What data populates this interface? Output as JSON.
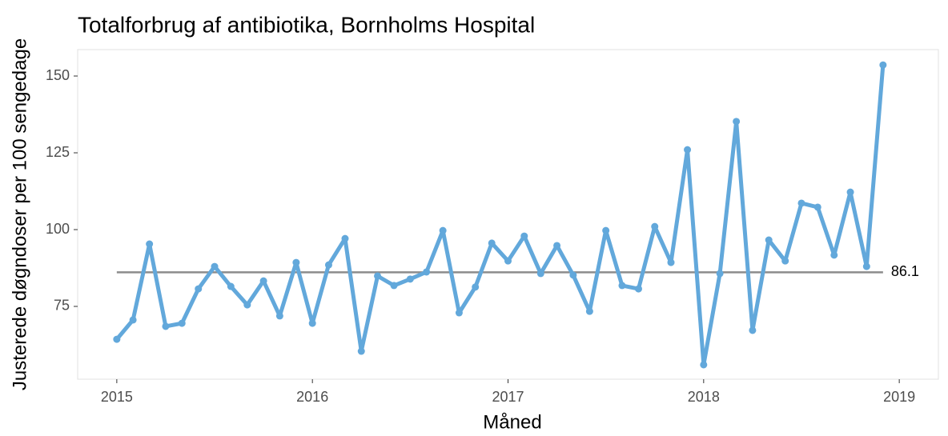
{
  "chart_data": {
    "type": "line",
    "title": "Totalforbrug af antibiotika, Bornholms Hospital",
    "xlabel": "Måned",
    "ylabel": "Justerede døgndoser per 100 sengedage",
    "x": [
      2015,
      2015.083,
      2015.167,
      2015.25,
      2015.333,
      2015.417,
      2015.5,
      2015.583,
      2015.667,
      2015.75,
      2015.833,
      2015.917,
      2016,
      2016.083,
      2016.167,
      2016.25,
      2016.333,
      2016.417,
      2016.5,
      2016.583,
      2016.667,
      2016.75,
      2016.833,
      2016.917,
      2017,
      2017.083,
      2017.167,
      2017.25,
      2017.333,
      2017.417,
      2017.5,
      2017.583,
      2017.667,
      2017.75,
      2017.833,
      2017.917,
      2018,
      2018.083,
      2018.167,
      2018.25,
      2018.333,
      2018.417,
      2018.5,
      2018.583,
      2018.667,
      2018.75,
      2018.833,
      2018.917
    ],
    "values": [
      64.3,
      70.6,
      95.3,
      68.5,
      69.5,
      80.7,
      88.0,
      81.5,
      75.5,
      83.3,
      71.9,
      89.3,
      69.5,
      88.5,
      97.1,
      60.4,
      84.9,
      81.8,
      83.9,
      86.2,
      99.7,
      72.9,
      81.3,
      95.6,
      89.8,
      97.9,
      85.7,
      94.8,
      85.2,
      73.4,
      99.7,
      81.8,
      80.7,
      101.0,
      89.3,
      126.0,
      56.0,
      85.7,
      135.2,
      67.2,
      96.6,
      89.8,
      108.6,
      107.3,
      91.7,
      112.2,
      88.0,
      153.6
    ],
    "color": "#62a8db",
    "hline": 86.1,
    "hline_color": "#8c8c8c",
    "xlim": [
      2014.8,
      2019.2
    ],
    "xticks": [
      2015,
      2016,
      2017,
      2018,
      2019
    ],
    "ylim": [
      51.3,
      158.6
    ],
    "yticks": [
      75,
      100,
      125,
      150
    ],
    "grid": false
  }
}
